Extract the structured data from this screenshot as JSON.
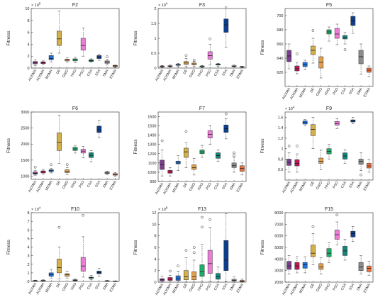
{
  "algorithms": [
    "AGSMA",
    "AOSMA",
    "MSMA",
    "DE",
    "GWO",
    "HHO",
    "PSO",
    "CSA",
    "SSA",
    "SMA",
    "ESMA"
  ],
  "colors": [
    "#7b3f8f",
    "#c2185b",
    "#1e6fd9",
    "#d4b04a",
    "#e0a050",
    "#1fae6a",
    "#ec7cd8",
    "#14857a",
    "#0d3e8a",
    "#8c8c8c",
    "#e8703c"
  ],
  "chart_data": [
    {
      "type": "box",
      "title": "F2",
      "ylabel": "Fitness",
      "multiplier": "× 10^5",
      "ylim": [
        0,
        10
      ],
      "yticks": [
        "0",
        "2",
        "4",
        "6",
        "8",
        "10"
      ],
      "yticks_values": [
        0,
        2,
        4,
        6,
        8,
        10
      ],
      "boxes": [
        {
          "lw": 0.4,
          "q1": 0.7,
          "med": 0.9,
          "q3": 1.1,
          "uw": 1.4,
          "out": []
        },
        {
          "lw": 0.6,
          "q1": 0.75,
          "med": 0.9,
          "q3": 1.05,
          "uw": 1.2,
          "out": []
        },
        {
          "lw": 1.0,
          "q1": 1.4,
          "med": 1.6,
          "q3": 2.1,
          "uw": 2.5,
          "out": []
        },
        {
          "lw": 2.5,
          "q1": 3.8,
          "med": 4.9,
          "q3": 6.2,
          "uw": 9.6,
          "out": []
        },
        {
          "lw": 1.0,
          "q1": 1.2,
          "med": 1.35,
          "q3": 1.5,
          "uw": 1.7,
          "out": []
        },
        {
          "lw": 0.9,
          "q1": 1.2,
          "med": 1.4,
          "q3": 1.55,
          "uw": 1.8,
          "out": []
        },
        {
          "lw": 2.0,
          "q1": 3.0,
          "med": 3.8,
          "q3": 5.0,
          "uw": 6.7,
          "out": []
        },
        {
          "lw": 1.0,
          "q1": 1.1,
          "med": 1.25,
          "q3": 1.4,
          "uw": 1.55,
          "out": []
        },
        {
          "lw": 1.3,
          "q1": 1.6,
          "med": 1.85,
          "q3": 2.1,
          "uw": 2.3,
          "out": []
        },
        {
          "lw": 0.5,
          "q1": 0.8,
          "med": 1.0,
          "q3": 1.2,
          "uw": 1.5,
          "out": [
            1.9
          ]
        },
        {
          "lw": 0.1,
          "q1": 0.25,
          "med": 0.35,
          "q3": 0.45,
          "uw": 0.5,
          "out": []
        }
      ]
    },
    {
      "type": "box",
      "title": "F3",
      "ylabel": "Fitness",
      "multiplier": "× 10^4",
      "ylim": [
        0,
        2
      ],
      "yticks": [
        "0",
        "0.5",
        "1",
        "1.5",
        "2"
      ],
      "yticks_values": [
        0,
        0.5,
        1,
        1.5,
        2
      ],
      "boxes": [
        {
          "lw": 0.02,
          "q1": 0.04,
          "med": 0.05,
          "q3": 0.07,
          "uw": 0.09,
          "out": []
        },
        {
          "lw": 0.03,
          "q1": 0.05,
          "med": 0.06,
          "q3": 0.08,
          "uw": 0.1,
          "out": []
        },
        {
          "lw": 0.05,
          "q1": 0.09,
          "med": 0.11,
          "q3": 0.13,
          "uw": 0.16,
          "out": []
        },
        {
          "lw": 0.05,
          "q1": 0.12,
          "med": 0.17,
          "q3": 0.22,
          "uw": 0.32,
          "out": [
            0.42
          ]
        },
        {
          "lw": 0.06,
          "q1": 0.11,
          "med": 0.14,
          "q3": 0.17,
          "uw": 0.22,
          "out": [
            0.27
          ]
        },
        {
          "lw": 0.02,
          "q1": 0.04,
          "med": 0.05,
          "q3": 0.07,
          "uw": 0.09,
          "out": []
        },
        {
          "lw": 0.1,
          "q1": 0.3,
          "med": 0.42,
          "q3": 0.55,
          "uw": 0.8,
          "out": [
            0.98
          ]
        },
        {
          "lw": 0.06,
          "q1": 0.1,
          "med": 0.12,
          "q3": 0.14,
          "uw": 0.16,
          "out": []
        },
        {
          "lw": 0.7,
          "q1": 1.2,
          "med": 1.45,
          "q3": 1.65,
          "uw": 2.05,
          "out": []
        },
        {
          "lw": 0.03,
          "q1": 0.05,
          "med": 0.06,
          "q3": 0.08,
          "uw": 0.1,
          "out": []
        },
        {
          "lw": 0.02,
          "q1": 0.03,
          "med": 0.04,
          "q3": 0.05,
          "uw": 0.06,
          "out": []
        }
      ]
    },
    {
      "type": "box",
      "title": "F5",
      "ylabel": "Fitness",
      "multiplier": "",
      "ylim": [
        600,
        710
      ],
      "yticks": [
        "620",
        "640",
        "660",
        "680",
        "700"
      ],
      "yticks_values": [
        620,
        640,
        660,
        680,
        700
      ],
      "boxes": [
        {
          "lw": 625,
          "q1": 635,
          "med": 643,
          "q3": 651,
          "uw": 660,
          "out": []
        },
        {
          "lw": 618,
          "q1": 622,
          "med": 625,
          "q3": 629,
          "uw": 634,
          "out": [
            646
          ]
        },
        {
          "lw": 624,
          "q1": 628,
          "med": 631,
          "q3": 634,
          "uw": 637,
          "out": []
        },
        {
          "lw": 633,
          "q1": 645,
          "med": 651,
          "q3": 657,
          "uw": 668,
          "out": [
            679
          ]
        },
        {
          "lw": 612,
          "q1": 626,
          "med": 634,
          "q3": 642,
          "uw": 654,
          "out": []
        },
        {
          "lw": 664,
          "q1": 674,
          "med": 677,
          "q3": 680,
          "uw": 684,
          "out": []
        },
        {
          "lw": 659,
          "q1": 668,
          "med": 674,
          "q3": 682,
          "uw": 688,
          "out": []
        },
        {
          "lw": 660,
          "q1": 667,
          "med": 669,
          "q3": 672,
          "uw": 676,
          "out": [
            652
          ]
        },
        {
          "lw": 675,
          "q1": 686,
          "med": 693,
          "q3": 699,
          "uw": 704,
          "out": []
        },
        {
          "lw": 617,
          "q1": 632,
          "med": 642,
          "q3": 651,
          "uw": 660,
          "out": []
        },
        {
          "lw": 614,
          "q1": 620,
          "med": 623,
          "q3": 626,
          "uw": 629,
          "out": []
        }
      ]
    },
    {
      "type": "box",
      "title": "F6",
      "ylabel": "Fitness",
      "multiplier": "",
      "ylim": [
        900,
        3000
      ],
      "yticks": [
        "1000",
        "1500",
        "2000",
        "2500",
        "3000"
      ],
      "yticks_values": [
        1000,
        1500,
        2000,
        2500,
        3000
      ],
      "boxes": [
        {
          "lw": 1030,
          "q1": 1060,
          "med": 1090,
          "q3": 1130,
          "uw": 1180,
          "out": [
            1280
          ]
        },
        {
          "lw": 1060,
          "q1": 1100,
          "med": 1130,
          "q3": 1165,
          "uw": 1210,
          "out": []
        },
        {
          "lw": 1100,
          "q1": 1140,
          "med": 1170,
          "q3": 1200,
          "uw": 1240,
          "out": [
            1360
          ]
        },
        {
          "lw": 1400,
          "q1": 1800,
          "med": 2050,
          "q3": 2350,
          "uw": 2900,
          "out": []
        },
        {
          "lw": 1050,
          "q1": 1110,
          "med": 1150,
          "q3": 1200,
          "uw": 1270,
          "out": [
            1360
          ]
        },
        {
          "lw": 1720,
          "q1": 1800,
          "med": 1850,
          "q3": 1900,
          "uw": 1960,
          "out": []
        },
        {
          "lw": 1580,
          "q1": 1720,
          "med": 1780,
          "q3": 1840,
          "uw": 1930,
          "out": []
        },
        {
          "lw": 1450,
          "q1": 1580,
          "med": 1650,
          "q3": 1730,
          "uw": 1800,
          "out": []
        },
        {
          "lw": 2200,
          "q1": 2360,
          "med": 2440,
          "q3": 2560,
          "uw": 2750,
          "out": []
        },
        {
          "lw": 1050,
          "q1": 1080,
          "med": 1100,
          "q3": 1130,
          "uw": 1160,
          "out": []
        },
        {
          "lw": 1000,
          "q1": 1030,
          "med": 1050,
          "q3": 1080,
          "uw": 1110,
          "out": []
        }
      ]
    },
    {
      "type": "box",
      "title": "F7",
      "ylabel": "Fitness",
      "multiplier": "",
      "ylim": [
        900,
        1650
      ],
      "yticks": [
        "900",
        "1000",
        "1100",
        "1200",
        "1300",
        "1400",
        "1500",
        "1600"
      ],
      "yticks_values": [
        900,
        1000,
        1100,
        1200,
        1300,
        1400,
        1500,
        1600
      ],
      "boxes": [
        {
          "lw": 960,
          "q1": 1030,
          "med": 1080,
          "q3": 1130,
          "uw": 1240,
          "out": [
            1340
          ]
        },
        {
          "lw": 960,
          "q1": 990,
          "med": 1000,
          "q3": 1020,
          "uw": 1050,
          "out": []
        },
        {
          "lw": 1020,
          "q1": 1090,
          "med": 1100,
          "q3": 1120,
          "uw": 1180,
          "out": []
        },
        {
          "lw": 1050,
          "q1": 1160,
          "med": 1220,
          "q3": 1260,
          "uw": 1320,
          "out": [
            1440
          ]
        },
        {
          "lw": 970,
          "q1": 1030,
          "med": 1050,
          "q3": 1080,
          "uw": 1150,
          "out": []
        },
        {
          "lw": 1160,
          "q1": 1200,
          "med": 1220,
          "q3": 1240,
          "uw": 1290,
          "out": []
        },
        {
          "lw": 1300,
          "q1": 1370,
          "med": 1410,
          "q3": 1450,
          "uw": 1500,
          "out": []
        },
        {
          "lw": 1120,
          "q1": 1150,
          "med": 1180,
          "q3": 1210,
          "uw": 1240,
          "out": []
        },
        {
          "lw": 1360,
          "q1": 1430,
          "med": 1470,
          "q3": 1510,
          "uw": 1580,
          "out": [
            1630
          ]
        },
        {
          "lw": 1000,
          "q1": 1050,
          "med": 1070,
          "q3": 1100,
          "uw": 1160,
          "out": [
            1210,
            1180
          ]
        },
        {
          "lw": 970,
          "q1": 1010,
          "med": 1040,
          "q3": 1070,
          "uw": 1100,
          "out": []
        }
      ]
    },
    {
      "type": "box",
      "title": "F9",
      "ylabel": "Fitness",
      "multiplier": "× 10^4",
      "ylim": [
        0.4,
        1.7
      ],
      "yticks": [
        "0.6",
        "0.8",
        "1",
        "1.2",
        "1.4",
        "1.6"
      ],
      "yticks_values": [
        0.6,
        0.8,
        1.0,
        1.2,
        1.4,
        1.6
      ],
      "boxes": [
        {
          "lw": 0.55,
          "q1": 0.68,
          "med": 0.74,
          "q3": 0.8,
          "uw": 0.92,
          "out": [
            1.05
          ]
        },
        {
          "lw": 0.55,
          "q1": 0.67,
          "med": 0.72,
          "q3": 0.79,
          "uw": 0.9,
          "out": [
            1.05
          ]
        },
        {
          "lw": 1.44,
          "q1": 1.47,
          "med": 1.5,
          "q3": 1.53,
          "uw": 1.56,
          "out": []
        },
        {
          "lw": 1.0,
          "q1": 1.25,
          "med": 1.37,
          "q3": 1.46,
          "uw": 1.6,
          "out": []
        },
        {
          "lw": 0.6,
          "q1": 0.72,
          "med": 0.76,
          "q3": 0.82,
          "uw": 0.97,
          "out": []
        },
        {
          "lw": 0.8,
          "q1": 0.9,
          "med": 0.95,
          "q3": 1.0,
          "uw": 1.08,
          "out": []
        },
        {
          "lw": 1.38,
          "q1": 1.45,
          "med": 1.48,
          "q3": 1.52,
          "uw": 1.57,
          "out": []
        },
        {
          "lw": 0.72,
          "q1": 0.8,
          "med": 0.86,
          "q3": 0.92,
          "uw": 0.98,
          "out": []
        },
        {
          "lw": 1.48,
          "q1": 1.51,
          "med": 1.53,
          "q3": 1.55,
          "uw": 1.6,
          "out": []
        },
        {
          "lw": 0.58,
          "q1": 0.7,
          "med": 0.76,
          "q3": 0.8,
          "uw": 0.92,
          "out": [
            0.5
          ]
        },
        {
          "lw": 0.55,
          "q1": 0.63,
          "med": 0.67,
          "q3": 0.72,
          "uw": 0.8,
          "out": []
        }
      ]
    },
    {
      "type": "box",
      "title": "F10",
      "ylabel": "Fitness",
      "multiplier": "× 10^4",
      "ylim": [
        0,
        8
      ],
      "yticks": [
        "0",
        "1",
        "2",
        "3",
        "4",
        "5",
        "6",
        "7",
        "8"
      ],
      "yticks_values": [
        0,
        1,
        2,
        3,
        4,
        5,
        6,
        7,
        8
      ],
      "boxes": [
        {
          "lw": 0.02,
          "q1": 0.05,
          "med": 0.08,
          "q3": 0.1,
          "uw": 0.15,
          "out": []
        },
        {
          "lw": 0.02,
          "q1": 0.06,
          "med": 0.1,
          "q3": 0.12,
          "uw": 0.2,
          "out": []
        },
        {
          "lw": 0.4,
          "q1": 0.6,
          "med": 0.8,
          "q3": 1.0,
          "uw": 1.4,
          "out": []
        },
        {
          "lw": 0.3,
          "q1": 1.0,
          "med": 1.6,
          "q3": 2.6,
          "uw": 4.0,
          "out": [
            6.3
          ]
        },
        {
          "lw": 0.4,
          "q1": 0.6,
          "med": 0.8,
          "q3": 0.9,
          "uw": 1.2,
          "out": []
        },
        {
          "lw": 0.05,
          "q1": 0.1,
          "med": 0.15,
          "q3": 0.2,
          "uw": 0.3,
          "out": []
        },
        {
          "lw": 0.5,
          "q1": 1.2,
          "med": 1.8,
          "q3": 2.8,
          "uw": 5.2,
          "out": [
            7.7
          ]
        },
        {
          "lw": 0.2,
          "q1": 0.35,
          "med": 0.45,
          "q3": 0.5,
          "uw": 0.7,
          "out": []
        },
        {
          "lw": 0.6,
          "q1": 0.9,
          "med": 1.05,
          "q3": 1.2,
          "uw": 1.5,
          "out": []
        },
        {
          "lw": 0.02,
          "q1": 0.04,
          "med": 0.06,
          "q3": 0.08,
          "uw": 0.12,
          "out": []
        },
        {
          "lw": 0.01,
          "q1": 0.02,
          "med": 0.03,
          "q3": 0.04,
          "uw": 0.06,
          "out": []
        }
      ]
    },
    {
      "type": "box",
      "title": "F13",
      "ylabel": "Fitness",
      "multiplier": "× 10^8",
      "ylim": [
        0,
        12
      ],
      "yticks": [
        "0",
        "2",
        "4",
        "6",
        "8",
        "10",
        "12"
      ],
      "yticks_values": [
        0,
        2,
        4,
        6,
        8,
        10,
        12
      ],
      "boxes": [
        {
          "lw": 0.0,
          "q1": 0.2,
          "med": 0.4,
          "q3": 0.6,
          "uw": 1.0,
          "out": []
        },
        {
          "lw": 0.0,
          "q1": 0.3,
          "med": 0.5,
          "q3": 0.8,
          "uw": 1.2,
          "out": [
            1.9
          ]
        },
        {
          "lw": 0.0,
          "q1": 0.3,
          "med": 0.6,
          "q3": 1.1,
          "uw": 1.9,
          "out": [
            2.8
          ]
        },
        {
          "lw": 0.0,
          "q1": 0.4,
          "med": 0.9,
          "q3": 2.0,
          "uw": 4.2,
          "out": [
            5.5
          ]
        },
        {
          "lw": 0.0,
          "q1": 0.4,
          "med": 0.9,
          "q3": 1.8,
          "uw": 3.8,
          "out": [
            5.1,
            6.0
          ]
        },
        {
          "lw": 0.0,
          "q1": 1.0,
          "med": 1.8,
          "q3": 3.0,
          "uw": 6.5,
          "out": [
            11.2,
            9.5
          ]
        },
        {
          "lw": 0.2,
          "q1": 1.5,
          "med": 3.2,
          "q3": 5.5,
          "uw": 9.5,
          "out": [
            10.8
          ]
        },
        {
          "lw": 0.0,
          "q1": 0.5,
          "med": 0.9,
          "q3": 1.5,
          "uw": 2.6,
          "out": []
        },
        {
          "lw": 0.1,
          "q1": 2.0,
          "med": 3.8,
          "q3": 7.2,
          "uw": 11.8,
          "out": []
        },
        {
          "lw": 0.0,
          "q1": 0.2,
          "med": 0.3,
          "q3": 0.5,
          "uw": 0.9,
          "out": []
        },
        {
          "lw": 0.0,
          "q1": 0.1,
          "med": 0.2,
          "q3": 0.3,
          "uw": 0.5,
          "out": []
        }
      ]
    },
    {
      "type": "box",
      "title": "F15",
      "ylabel": "Fitness",
      "multiplier": "",
      "ylim": [
        2000,
        8000
      ],
      "yticks": [
        "2000",
        "3000",
        "4000",
        "5000",
        "6000",
        "7000",
        "8000"
      ],
      "yticks_values": [
        2000,
        3000,
        4000,
        5000,
        6000,
        7000,
        8000
      ],
      "boxes": [
        {
          "lw": 2700,
          "q1": 3100,
          "med": 3400,
          "q3": 3800,
          "uw": 4300,
          "out": []
        },
        {
          "lw": 2800,
          "q1": 3100,
          "med": 3400,
          "q3": 3700,
          "uw": 4200,
          "out": []
        },
        {
          "lw": 2800,
          "q1": 3200,
          "med": 3500,
          "q3": 3700,
          "uw": 4200,
          "out": []
        },
        {
          "lw": 3500,
          "q1": 4200,
          "med": 4500,
          "q3": 5200,
          "uw": 6200,
          "out": [
            6800
          ]
        },
        {
          "lw": 2700,
          "q1": 3100,
          "med": 3300,
          "q3": 3600,
          "uw": 4100,
          "out": []
        },
        {
          "lw": 3700,
          "q1": 4200,
          "med": 4500,
          "q3": 4900,
          "uw": 5400,
          "out": []
        },
        {
          "lw": 5200,
          "q1": 5700,
          "med": 6100,
          "q3": 6500,
          "uw": 7200,
          "out": [
            7800
          ]
        },
        {
          "lw": 3900,
          "q1": 4300,
          "med": 4700,
          "q3": 5100,
          "uw": 5700,
          "out": []
        },
        {
          "lw": 5500,
          "q1": 5900,
          "med": 6200,
          "q3": 6400,
          "uw": 6800,
          "out": []
        },
        {
          "lw": 2700,
          "q1": 3000,
          "med": 3300,
          "q3": 3700,
          "uw": 4300,
          "out": []
        },
        {
          "lw": 2600,
          "q1": 2900,
          "med": 3200,
          "q3": 3400,
          "uw": 3800,
          "out": []
        }
      ]
    }
  ]
}
